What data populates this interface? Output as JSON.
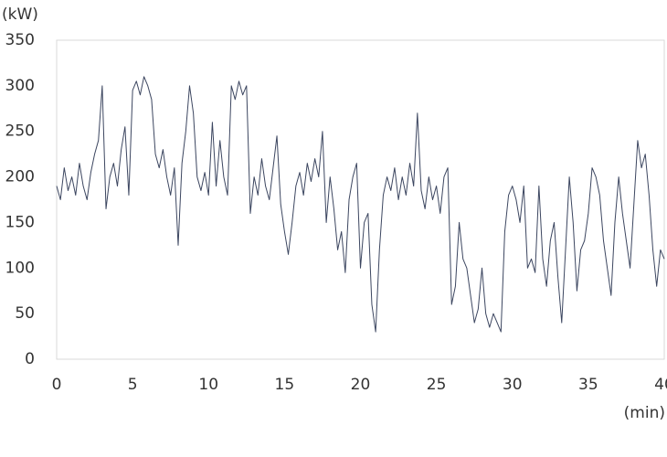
{
  "chart_data": {
    "type": "line",
    "y_label": "(kW)",
    "x_label": "(min)",
    "x": [
      0,
      0.25,
      0.5,
      0.75,
      1,
      1.25,
      1.5,
      1.75,
      2,
      2.25,
      2.5,
      2.75,
      3,
      3.25,
      3.5,
      3.75,
      4,
      4.25,
      4.5,
      4.75,
      5,
      5.25,
      5.5,
      5.75,
      6,
      6.25,
      6.5,
      6.75,
      7,
      7.25,
      7.5,
      7.75,
      8,
      8.25,
      8.5,
      8.75,
      9,
      9.25,
      9.5,
      9.75,
      10,
      10.25,
      10.5,
      10.75,
      11,
      11.25,
      11.5,
      11.75,
      12,
      12.25,
      12.5,
      12.75,
      13,
      13.25,
      13.5,
      13.75,
      14,
      14.25,
      14.5,
      14.75,
      15,
      15.25,
      15.5,
      15.75,
      16,
      16.25,
      16.5,
      16.75,
      17,
      17.25,
      17.5,
      17.75,
      18,
      18.25,
      18.5,
      18.75,
      19,
      19.25,
      19.5,
      19.75,
      20,
      20.25,
      20.5,
      20.75,
      21,
      21.25,
      21.5,
      21.75,
      22,
      22.25,
      22.5,
      22.75,
      23,
      23.25,
      23.5,
      23.75,
      24,
      24.25,
      24.5,
      24.75,
      25,
      25.25,
      25.5,
      25.75,
      26,
      26.25,
      26.5,
      26.75,
      27,
      27.25,
      27.5,
      27.75,
      28,
      28.25,
      28.5,
      28.75,
      29,
      29.25,
      29.5,
      29.75,
      30,
      30.25,
      30.5,
      30.75,
      31,
      31.25,
      31.5,
      31.75,
      32,
      32.25,
      32.5,
      32.75,
      33,
      33.25,
      33.5,
      33.75,
      34,
      34.25,
      34.5,
      34.75,
      35,
      35.25,
      35.5,
      35.75,
      36,
      36.25,
      36.5,
      36.75,
      37,
      37.25,
      37.5,
      37.75,
      38,
      38.25,
      38.5,
      38.75,
      39,
      39.25,
      39.5,
      39.75,
      40
    ],
    "values": [
      190,
      175,
      210,
      185,
      200,
      180,
      215,
      190,
      175,
      205,
      225,
      240,
      300,
      165,
      200,
      215,
      190,
      230,
      255,
      180,
      295,
      305,
      290,
      310,
      300,
      285,
      225,
      210,
      230,
      200,
      180,
      210,
      125,
      215,
      250,
      300,
      270,
      200,
      185,
      205,
      180,
      260,
      190,
      240,
      200,
      180,
      300,
      285,
      305,
      290,
      300,
      160,
      200,
      180,
      220,
      190,
      175,
      210,
      245,
      170,
      140,
      115,
      150,
      190,
      205,
      180,
      215,
      195,
      220,
      200,
      250,
      150,
      200,
      165,
      120,
      140,
      95,
      175,
      200,
      215,
      100,
      150,
      160,
      60,
      30,
      120,
      180,
      200,
      185,
      210,
      175,
      200,
      180,
      215,
      190,
      270,
      185,
      165,
      200,
      175,
      190,
      160,
      200,
      210,
      60,
      80,
      150,
      110,
      100,
      70,
      40,
      55,
      100,
      50,
      35,
      50,
      40,
      30,
      140,
      180,
      190,
      175,
      150,
      190,
      100,
      110,
      95,
      190,
      110,
      80,
      130,
      150,
      90,
      40,
      120,
      200,
      150,
      75,
      120,
      130,
      160,
      210,
      200,
      180,
      130,
      100,
      70,
      150,
      200,
      160,
      130,
      100,
      170,
      240,
      210,
      225,
      180,
      120,
      80,
      120,
      110
    ],
    "color": "#3c4660",
    "xlim": [
      0,
      40
    ],
    "xticks": [
      0,
      5,
      10,
      15,
      20,
      25,
      30,
      35,
      40
    ],
    "ylim": [
      0,
      350
    ],
    "yticks": [
      0,
      50,
      100,
      150,
      200,
      250,
      300,
      350
    ],
    "grid": false
  }
}
